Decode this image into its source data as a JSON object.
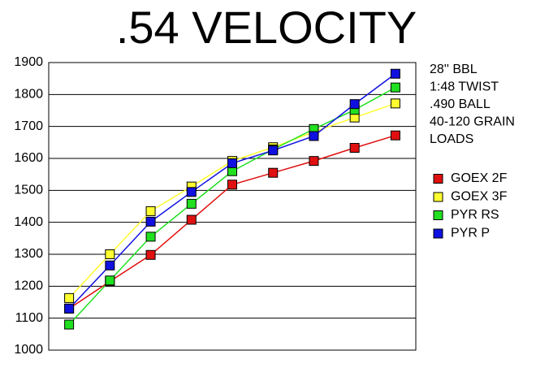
{
  "chart_data": {
    "type": "line",
    "title": ".54 VELOCITY",
    "annotations": [
      "28'' BBL",
      "1:48 TWIST",
      ".490 BALL",
      "40-120 GRAIN",
      "LOADS"
    ],
    "categories": [
      null,
      null,
      null,
      null,
      null,
      null,
      null,
      null,
      null
    ],
    "series": [
      {
        "name": "GOEX 2F",
        "color": "#e01010",
        "values": [
          1130,
          1215,
          1298,
          1408,
          1518,
          1555,
          1592,
          1633,
          1672
        ]
      },
      {
        "name": "GOEX 3F",
        "color": "#ffff30",
        "values": [
          1163,
          1300,
          1435,
          1512,
          1592,
          1635,
          1683,
          1728,
          1772
        ]
      },
      {
        "name": "PYR RS",
        "color": "#20e020",
        "values": [
          1080,
          1218,
          1355,
          1458,
          1560,
          1628,
          1692,
          1752,
          1822
        ]
      },
      {
        "name": "PYR P",
        "color": "#1010e0",
        "values": [
          1130,
          1265,
          1402,
          1495,
          1585,
          1625,
          1670,
          1770,
          1865
        ]
      }
    ],
    "ylim": [
      1000,
      1900
    ],
    "yticks": [
      1000,
      1100,
      1200,
      1300,
      1400,
      1500,
      1600,
      1700,
      1800,
      1900
    ],
    "grid": true,
    "legend": "right"
  }
}
